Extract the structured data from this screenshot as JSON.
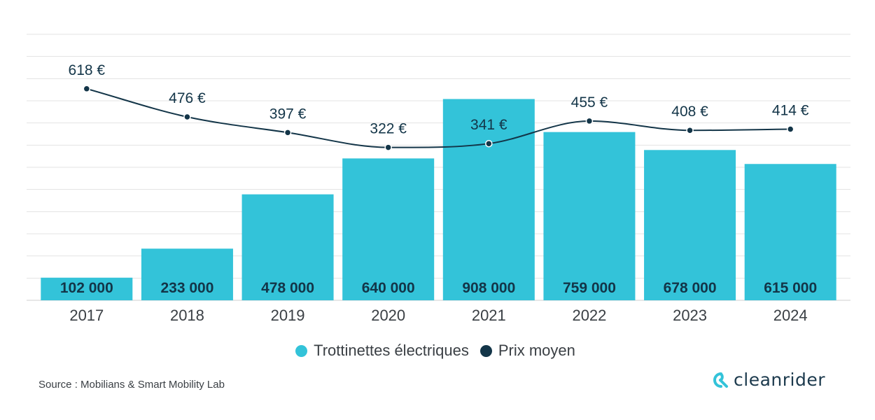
{
  "chart_data": {
    "type": "bar",
    "categories": [
      "2017",
      "2018",
      "2019",
      "2020",
      "2021",
      "2022",
      "2023",
      "2024"
    ],
    "series": [
      {
        "name": "Trottinettes électriques",
        "kind": "bar",
        "color": "#33c3d9",
        "values": [
          102000,
          233000,
          478000,
          640000,
          908000,
          759000,
          678000,
          615000
        ],
        "labels": [
          "102 000",
          "233 000",
          "478 000",
          "640 000",
          "908 000",
          "759 000",
          "678 000",
          "615 000"
        ]
      },
      {
        "name": "Prix moyen",
        "kind": "line",
        "color": "#133548",
        "values": [
          618,
          476,
          397,
          322,
          341,
          455,
          408,
          414
        ],
        "labels": [
          "618 €",
          "476 €",
          "397 €",
          "322 €",
          "341 €",
          "455 €",
          "408 €",
          "414 €"
        ]
      }
    ],
    "bar_axis_range": [
      0,
      1200000
    ],
    "line_axis_range": [
      -450,
      893
    ],
    "grid": true,
    "legend_position": "bottom"
  },
  "source": "Source : Mobilians & Smart Mobility Lab",
  "logo": {
    "text": "cleanrider",
    "icon": "cleanrider-logo-icon",
    "color": "#1c3a4d"
  }
}
